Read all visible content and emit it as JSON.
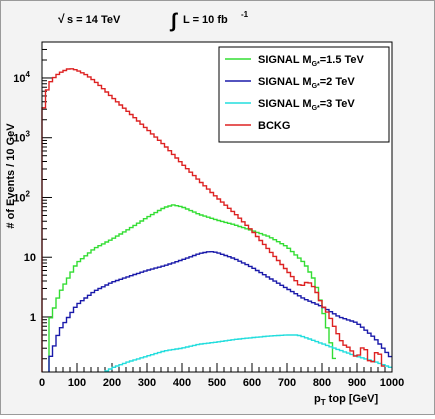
{
  "chart_data": {
    "type": "line",
    "title": "√s = 14 TeV   ∫ L = 10 fb⁻¹",
    "header": {
      "sqrt_s": "s = 14 TeV",
      "lumi": "L = 10 fb",
      "lumi_exp": "-1"
    },
    "xlabel": {
      "main": "p",
      "sub": "T",
      "rest": " top [GeV]"
    },
    "ylabel": "# of Events / 10 GeV",
    "xlim": [
      0,
      1000
    ],
    "ylim": [
      0.12,
      40000
    ],
    "log_y": true,
    "grid": false,
    "legend_position": "top-right",
    "x_ticks": [
      0,
      100,
      200,
      300,
      400,
      500,
      600,
      700,
      800,
      900,
      1000
    ],
    "y_ticks": [
      {
        "value": 1,
        "base": "1",
        "exp": ""
      },
      {
        "value": 10,
        "base": "10",
        "exp": ""
      },
      {
        "value": 100,
        "base": "10",
        "exp": "2"
      },
      {
        "value": 1000,
        "base": "10",
        "exp": "3"
      },
      {
        "value": 10000,
        "base": "10",
        "exp": "4"
      }
    ],
    "series": [
      {
        "name": "SIGNAL M",
        "name_sub": "G*",
        "name_rest": "=1.5 TeV",
        "color": "#33dd33",
        "points": [
          [
            20,
            0.8
          ],
          [
            50,
            2.5
          ],
          [
            100,
            8
          ],
          [
            150,
            14
          ],
          [
            200,
            20
          ],
          [
            250,
            30
          ],
          [
            300,
            46
          ],
          [
            350,
            68
          ],
          [
            375,
            75
          ],
          [
            400,
            70
          ],
          [
            450,
            52
          ],
          [
            500,
            42
          ],
          [
            550,
            35
          ],
          [
            600,
            28
          ],
          [
            650,
            22
          ],
          [
            700,
            15
          ],
          [
            750,
            8
          ],
          [
            780,
            4
          ],
          [
            800,
            1.5
          ],
          [
            820,
            0.5
          ],
          [
            840,
            0.15
          ]
        ]
      },
      {
        "name": "SIGNAL M",
        "name_sub": "G*",
        "name_rest": "=2 TeV",
        "color": "#1a1aaa",
        "points": [
          [
            20,
            0.18
          ],
          [
            50,
            0.6
          ],
          [
            100,
            1.6
          ],
          [
            150,
            2.7
          ],
          [
            200,
            3.8
          ],
          [
            250,
            4.8
          ],
          [
            300,
            6
          ],
          [
            350,
            7.2
          ],
          [
            400,
            9
          ],
          [
            450,
            11.5
          ],
          [
            480,
            12.5
          ],
          [
            500,
            12
          ],
          [
            550,
            9.5
          ],
          [
            600,
            6.8
          ],
          [
            650,
            4.5
          ],
          [
            700,
            3
          ],
          [
            750,
            2
          ],
          [
            800,
            1.5
          ],
          [
            850,
            1
          ],
          [
            900,
            0.8
          ],
          [
            950,
            0.45
          ],
          [
            1000,
            0.2
          ]
        ]
      },
      {
        "name": "SIGNAL M",
        "name_sub": "G*",
        "name_rest": "=3 TeV",
        "color": "#22dddd",
        "points": [
          [
            180,
            0.12
          ],
          [
            200,
            0.14
          ],
          [
            250,
            0.18
          ],
          [
            300,
            0.22
          ],
          [
            350,
            0.27
          ],
          [
            400,
            0.3
          ],
          [
            450,
            0.35
          ],
          [
            500,
            0.38
          ],
          [
            550,
            0.42
          ],
          [
            600,
            0.45
          ],
          [
            650,
            0.48
          ],
          [
            700,
            0.5
          ],
          [
            730,
            0.5
          ],
          [
            750,
            0.46
          ],
          [
            800,
            0.36
          ],
          [
            850,
            0.28
          ],
          [
            900,
            0.22
          ],
          [
            950,
            0.18
          ],
          [
            1000,
            0.14
          ]
        ]
      },
      {
        "name": "BCKG",
        "color": "#dd2222",
        "points": [
          [
            0,
            2000
          ],
          [
            10,
            5000
          ],
          [
            20,
            8000
          ],
          [
            40,
            11000
          ],
          [
            60,
            13000
          ],
          [
            80,
            14500
          ],
          [
            100,
            13500
          ],
          [
            130,
            11000
          ],
          [
            160,
            8000
          ],
          [
            200,
            4800
          ],
          [
            250,
            2600
          ],
          [
            300,
            1400
          ],
          [
            350,
            750
          ],
          [
            400,
            370
          ],
          [
            450,
            190
          ],
          [
            500,
            100
          ],
          [
            550,
            55
          ],
          [
            600,
            28
          ],
          [
            650,
            13
          ],
          [
            700,
            6
          ],
          [
            740,
            3.2
          ],
          [
            760,
            4
          ],
          [
            780,
            3
          ],
          [
            800,
            1.6
          ],
          [
            820,
            1.1
          ],
          [
            840,
            0.6
          ],
          [
            860,
            0.35
          ],
          [
            880,
            0.3
          ],
          [
            900,
            0.2
          ],
          [
            920,
            0.35
          ],
          [
            940,
            0.15
          ],
          [
            960,
            0.3
          ],
          [
            980,
            0.12
          ]
        ]
      }
    ]
  }
}
